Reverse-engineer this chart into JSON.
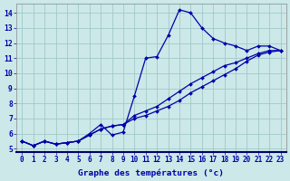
{
  "xlabel": "Graphe des températures (°c)",
  "hours": [
    0,
    1,
    2,
    3,
    4,
    5,
    6,
    7,
    8,
    9,
    10,
    11,
    12,
    13,
    14,
    15,
    16,
    17,
    18,
    19,
    20,
    21,
    22,
    23
  ],
  "line1": [
    5.5,
    5.2,
    5.5,
    5.3,
    5.4,
    5.5,
    5.9,
    6.3,
    6.5,
    6.6,
    7.0,
    7.2,
    7.5,
    7.8,
    8.2,
    8.7,
    9.1,
    9.5,
    9.9,
    10.3,
    10.8,
    11.2,
    11.4,
    11.5
  ],
  "line2": [
    5.5,
    5.2,
    5.5,
    5.3,
    5.4,
    5.5,
    5.9,
    6.3,
    6.5,
    6.6,
    7.2,
    7.5,
    7.8,
    8.3,
    8.8,
    9.3,
    9.7,
    10.1,
    10.5,
    10.7,
    11.0,
    11.3,
    11.5,
    11.5
  ],
  "line3": [
    5.5,
    5.2,
    5.5,
    5.3,
    5.4,
    5.5,
    6.0,
    6.6,
    5.9,
    6.1,
    8.5,
    11.0,
    11.1,
    12.5,
    14.2,
    14.0,
    13.0,
    12.3,
    12.0,
    11.8,
    11.5,
    11.8,
    11.8,
    11.5
  ],
  "ylim": [
    4.8,
    14.6
  ],
  "yticks": [
    5,
    6,
    7,
    8,
    9,
    10,
    11,
    12,
    13,
    14
  ],
  "bg_color": "#cce8e8",
  "grid_color": "#99c4c4",
  "line_color": "#0000aa",
  "markersize": 2.0,
  "linewidth": 0.9,
  "tick_fontsize": 5.5,
  "xlabel_fontsize": 6.8
}
